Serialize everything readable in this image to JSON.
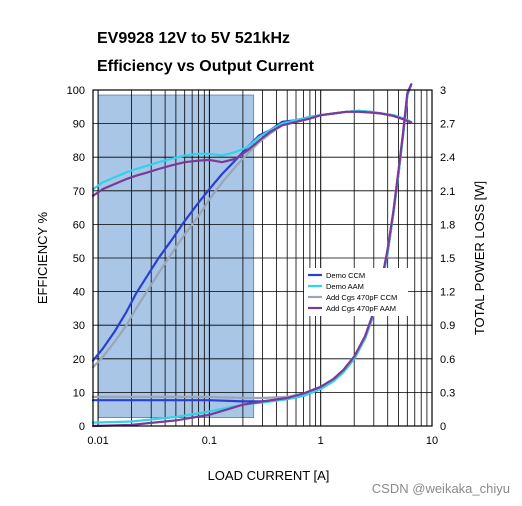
{
  "watermark": "CSDN @weikaka_chiyu",
  "chart_data": {
    "type": "line",
    "title": "EV9928 12V to 5V 521kHz",
    "subtitle": "Efficiency vs Output Current",
    "xlabel": "LOAD CURRENT [A]",
    "ylabel": "EFFICIENCY %",
    "y2label": "TOTAL POWER LOSS [W]",
    "xscale": "log",
    "xlim": [
      0.009,
      10
    ],
    "ylim": [
      0,
      100
    ],
    "y2lim": [
      0,
      3
    ],
    "x_ticks": [
      0.01,
      0.1,
      1,
      10
    ],
    "x_tick_labels": [
      "0.01",
      "0.1",
      "1",
      "10"
    ],
    "y_ticks": [
      0,
      10,
      20,
      30,
      40,
      50,
      60,
      70,
      80,
      90,
      100
    ],
    "y_tick_labels": [
      "0",
      "10",
      "20",
      "30",
      "40",
      "50",
      "60",
      "70",
      "80",
      "90",
      "100"
    ],
    "y2_ticks": [
      0,
      0.3,
      0.6,
      0.9,
      1.2,
      1.5,
      1.8,
      2.1,
      2.4,
      2.7,
      3
    ],
    "y2_tick_labels": [
      "0",
      "0.3",
      "0.6",
      "0.9",
      "1.2",
      "1.5",
      "1.8",
      "2.1",
      "2.4",
      "2.7",
      "3"
    ],
    "grid": true,
    "legend_position": "center-right",
    "highlight": {
      "x": [
        0.01,
        0.25
      ],
      "y": [
        2.5,
        98.5
      ],
      "color": "#a9c6e6"
    },
    "series": [
      {
        "name": "Demo CCM",
        "color": "#2b3fd6",
        "axis": "left",
        "x": [
          0.009,
          0.011,
          0.014,
          0.018,
          0.022,
          0.028,
          0.035,
          0.045,
          0.06,
          0.08,
          0.1,
          0.13,
          0.17,
          0.22,
          0.28,
          0.35,
          0.45,
          0.6,
          0.8,
          1,
          1.3,
          1.7,
          2.2,
          2.8,
          3.5,
          4.5,
          5.5,
          6.5
        ],
        "y": [
          19.5,
          23,
          28,
          34,
          39.5,
          45,
          50,
          55,
          61,
          66.5,
          70.5,
          75,
          79,
          83,
          86.5,
          88,
          90.5,
          91,
          92,
          92.5,
          93,
          93.5,
          93.8,
          93.5,
          93,
          92.5,
          91.5,
          90.5
        ]
      },
      {
        "name": "Demo AAM",
        "color": "#2fd3ea",
        "axis": "left",
        "x": [
          0.009,
          0.011,
          0.014,
          0.018,
          0.022,
          0.028,
          0.035,
          0.045,
          0.06,
          0.08,
          0.1,
          0.13,
          0.17,
          0.22,
          0.28,
          0.35,
          0.45,
          0.6,
          0.8,
          1,
          1.3,
          1.7,
          2.2,
          2.8,
          3.5,
          4.5,
          5.5,
          6.5
        ],
        "y": [
          70.5,
          72.5,
          74,
          75.5,
          76.5,
          77.5,
          78.5,
          79.5,
          80.5,
          81,
          81,
          80.5,
          81.5,
          83,
          86,
          88,
          90,
          91,
          92,
          92.5,
          93,
          93.5,
          93.8,
          93.5,
          93,
          92.5,
          91.5,
          90.5
        ]
      },
      {
        "name": "Add Cgs 470pF CCM",
        "color": "#9aa6b8",
        "axis": "left",
        "x": [
          0.009,
          0.011,
          0.014,
          0.018,
          0.022,
          0.028,
          0.035,
          0.045,
          0.06,
          0.08,
          0.1,
          0.13,
          0.17,
          0.22,
          0.28,
          0.35,
          0.45,
          0.6,
          0.8,
          1,
          1.3,
          1.7,
          2.2,
          2.8,
          3.5,
          4.5,
          5.5,
          6.5
        ],
        "y": [
          17.5,
          20.5,
          25,
          30,
          35,
          40.5,
          45.5,
          51,
          57,
          62.5,
          67.5,
          72.5,
          77,
          81,
          84.5,
          87,
          89.5,
          90.5,
          91.5,
          92.5,
          93,
          93.5,
          93.5,
          93.3,
          93,
          92.3,
          91.3,
          90.3
        ]
      },
      {
        "name": "Add Cgs 470pF AAM",
        "color": "#7a3a9a",
        "axis": "left",
        "x": [
          0.009,
          0.011,
          0.014,
          0.018,
          0.022,
          0.028,
          0.035,
          0.045,
          0.06,
          0.08,
          0.1,
          0.13,
          0.17,
          0.22,
          0.28,
          0.35,
          0.45,
          0.6,
          0.8,
          1,
          1.3,
          1.7,
          2.2,
          2.8,
          3.5,
          4.5,
          5.5,
          6.5
        ],
        "y": [
          68.5,
          70.5,
          72,
          73.5,
          74.5,
          75.5,
          76.5,
          77.5,
          78.5,
          79,
          79.2,
          78.5,
          79.5,
          82,
          85,
          87.5,
          89.5,
          90.5,
          91.5,
          92.5,
          93,
          93.5,
          93.5,
          93.3,
          93,
          92.3,
          91.3,
          90.3
        ]
      },
      {
        "name": "Demo CCM loss",
        "color": "#2b3fd6",
        "axis": "right",
        "x": [
          0.009,
          0.02,
          0.05,
          0.1,
          0.2,
          0.3,
          0.5,
          0.7,
          1,
          1.3,
          1.6,
          2,
          2.5,
          3,
          3.5,
          4,
          4.5,
          5,
          5.5,
          6,
          6.5
        ],
        "y": [
          0.23,
          0.23,
          0.23,
          0.23,
          0.22,
          0.22,
          0.24,
          0.27,
          0.33,
          0.4,
          0.48,
          0.6,
          0.78,
          1.0,
          1.25,
          1.55,
          1.9,
          2.25,
          2.6,
          2.95,
          3.05
        ]
      },
      {
        "name": "Demo AAM loss",
        "color": "#2fd3ea",
        "axis": "right",
        "x": [
          0.009,
          0.02,
          0.05,
          0.1,
          0.2,
          0.3,
          0.5,
          0.7,
          1,
          1.3,
          1.6,
          2,
          2.5,
          3,
          3.5,
          4,
          4.5,
          5,
          5.5,
          6,
          6.5
        ],
        "y": [
          0.03,
          0.04,
          0.08,
          0.13,
          0.19,
          0.21,
          0.24,
          0.27,
          0.33,
          0.4,
          0.48,
          0.6,
          0.78,
          1.0,
          1.25,
          1.55,
          1.9,
          2.25,
          2.6,
          2.95,
          3.05
        ]
      },
      {
        "name": "Add Cgs 470pF CCM loss",
        "color": "#9aa6b8",
        "axis": "right",
        "x": [
          0.009,
          0.02,
          0.05,
          0.1,
          0.2,
          0.3,
          0.5,
          0.7,
          1,
          1.3,
          1.6,
          2,
          2.5,
          3,
          3.5,
          4,
          4.5,
          5,
          5.5,
          6,
          6.5
        ],
        "y": [
          0.26,
          0.26,
          0.26,
          0.26,
          0.25,
          0.25,
          0.26,
          0.29,
          0.35,
          0.42,
          0.5,
          0.62,
          0.8,
          1.02,
          1.28,
          1.58,
          1.92,
          2.28,
          2.62,
          2.97,
          3.05
        ]
      },
      {
        "name": "Add Cgs 470pF AAM loss",
        "color": "#7a3a9a",
        "axis": "right",
        "x": [
          0.009,
          0.02,
          0.05,
          0.1,
          0.2,
          0.3,
          0.5,
          0.7,
          1,
          1.3,
          1.6,
          2,
          2.5,
          3,
          3.5,
          4,
          4.5,
          5,
          5.5,
          6,
          6.5
        ],
        "y": [
          0.0,
          0.01,
          0.05,
          0.1,
          0.19,
          0.22,
          0.25,
          0.29,
          0.35,
          0.42,
          0.5,
          0.62,
          0.8,
          1.02,
          1.28,
          1.58,
          1.92,
          2.28,
          2.62,
          2.97,
          3.05
        ]
      }
    ],
    "legend": [
      "Demo CCM",
      "Demo AAM",
      "Add Cgs 470pF CCM",
      "Add Cgs 470pF AAM"
    ]
  }
}
